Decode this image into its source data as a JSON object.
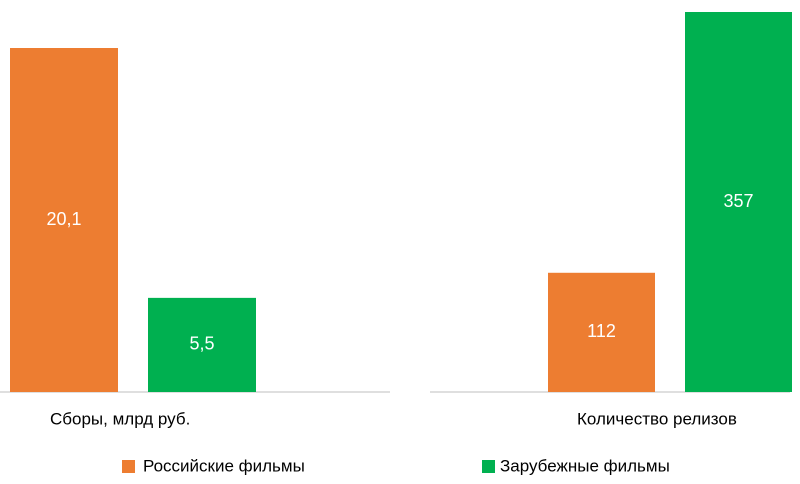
{
  "chart_data": [
    {
      "type": "bar",
      "categories": [
        "Сборы, млрд руб."
      ],
      "series": [
        {
          "name": "Российские фильмы",
          "color": "#ed7d31",
          "values": [
            20.1
          ],
          "value_labels": [
            "20,1"
          ]
        },
        {
          "name": "Зарубежные фильмы",
          "color": "#00b050",
          "values": [
            5.5
          ],
          "value_labels": [
            "5,5"
          ]
        }
      ]
    },
    {
      "type": "bar",
      "categories": [
        "Количество релизов"
      ],
      "series": [
        {
          "color": "#ed7d31",
          "values": [
            112
          ],
          "value_labels": [
            "112"
          ]
        },
        {
          "color": "#00b050",
          "values": [
            357
          ],
          "value_labels": [
            "357"
          ]
        }
      ]
    }
  ]
}
